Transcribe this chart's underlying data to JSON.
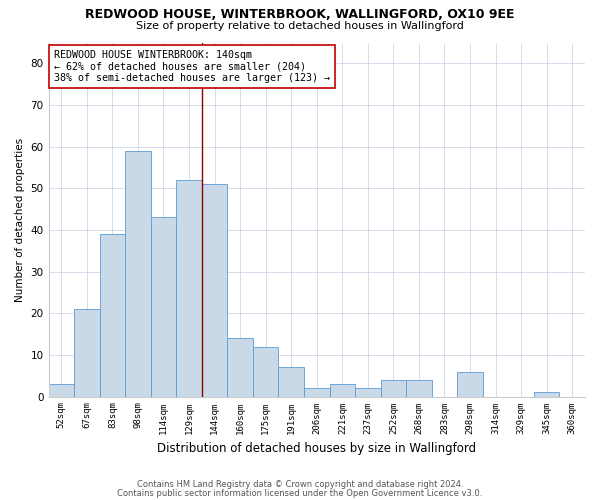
{
  "title": "REDWOOD HOUSE, WINTERBROOK, WALLINGFORD, OX10 9EE",
  "subtitle": "Size of property relative to detached houses in Wallingford",
  "xlabel": "Distribution of detached houses by size in Wallingford",
  "ylabel": "Number of detached properties",
  "categories": [
    "52sqm",
    "67sqm",
    "83sqm",
    "98sqm",
    "114sqm",
    "129sqm",
    "144sqm",
    "160sqm",
    "175sqm",
    "191sqm",
    "206sqm",
    "221sqm",
    "237sqm",
    "252sqm",
    "268sqm",
    "283sqm",
    "298sqm",
    "314sqm",
    "329sqm",
    "345sqm",
    "360sqm"
  ],
  "values": [
    3,
    21,
    39,
    59,
    43,
    52,
    51,
    14,
    12,
    7,
    2,
    3,
    2,
    4,
    4,
    0,
    6,
    0,
    0,
    1,
    0
  ],
  "bar_color": "#c9d9e8",
  "bar_edge_color": "#5b9bd5",
  "ylim": [
    0,
    85
  ],
  "yticks": [
    0,
    10,
    20,
    30,
    40,
    50,
    60,
    70,
    80
  ],
  "vline_color": "#8b0000",
  "annotation_text": "REDWOOD HOUSE WINTERBROOK: 140sqm\n← 62% of detached houses are smaller (204)\n38% of semi-detached houses are larger (123) →",
  "annotation_box_color": "#ffffff",
  "annotation_box_edge": "#c00000",
  "footer1": "Contains HM Land Registry data © Crown copyright and database right 2024.",
  "footer2": "Contains public sector information licensed under the Open Government Licence v3.0.",
  "background_color": "#ffffff",
  "grid_color": "#d0d8e8"
}
